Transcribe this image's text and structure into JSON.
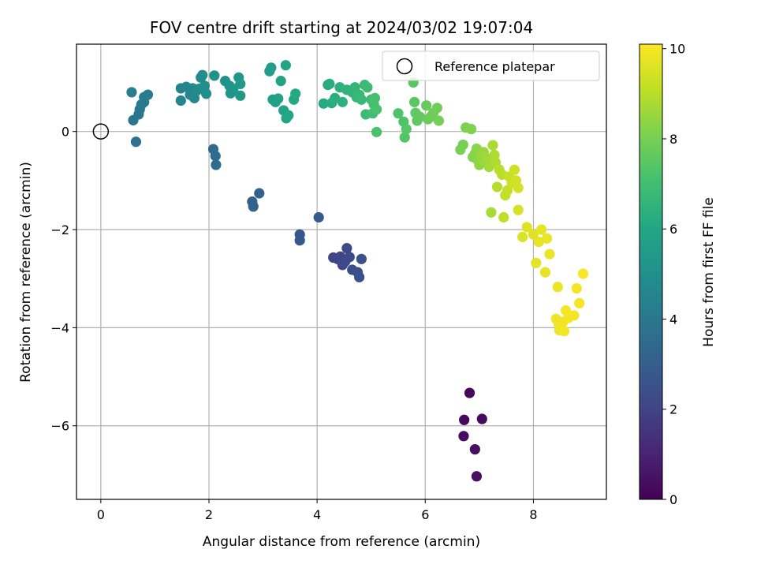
{
  "chart_data": {
    "type": "scatter",
    "title": "FOV centre drift starting at 2024/03/02 19:07:04",
    "xlabel": "Angular distance from reference (arcmin)",
    "ylabel": "Rotation from reference (arcmin)",
    "xlim": [
      -0.45,
      9.35
    ],
    "ylim": [
      -7.5,
      1.78
    ],
    "xticks": [
      0,
      2,
      4,
      6,
      8
    ],
    "yticks": [
      0,
      -2,
      -4,
      -6
    ],
    "xtick_labels": [
      "0",
      "2",
      "4",
      "6",
      "8"
    ],
    "ytick_labels": [
      "0",
      "−2",
      "−4",
      "−6"
    ],
    "grid": true,
    "legend": {
      "location": "top-right",
      "entries": [
        {
          "label": "Reference platepar",
          "marker": "open-circle"
        }
      ]
    },
    "reference_point": {
      "x": 0,
      "y": 0
    },
    "colorbar": {
      "label": "Hours from first FF file",
      "colormap": "viridis",
      "range": [
        0,
        10.1
      ],
      "ticks": [
        0,
        2,
        4,
        6,
        8,
        10
      ],
      "tick_labels": [
        "0",
        "2",
        "4",
        "6",
        "8",
        "10"
      ]
    },
    "series": [
      {
        "points": [
          {
            "x": 6.82,
            "y": -5.33,
            "t": 0.2
          },
          {
            "x": 6.72,
            "y": -5.88,
            "t": 0.25
          },
          {
            "x": 7.05,
            "y": -5.86,
            "t": 0.3
          },
          {
            "x": 6.71,
            "y": -6.21,
            "t": 0.35
          },
          {
            "x": 6.92,
            "y": -6.48,
            "t": 0.4
          },
          {
            "x": 6.95,
            "y": -7.03,
            "t": 0.45
          },
          {
            "x": 4.3,
            "y": -2.57,
            "t": 2.0
          },
          {
            "x": 4.38,
            "y": -2.6,
            "t": 2.05
          },
          {
            "x": 4.43,
            "y": -2.55,
            "t": 2.1
          },
          {
            "x": 4.47,
            "y": -2.72,
            "t": 2.15
          },
          {
            "x": 4.52,
            "y": -2.65,
            "t": 2.2
          },
          {
            "x": 4.55,
            "y": -2.38,
            "t": 2.25
          },
          {
            "x": 4.6,
            "y": -2.56,
            "t": 2.3
          },
          {
            "x": 4.65,
            "y": -2.82,
            "t": 2.35
          },
          {
            "x": 4.75,
            "y": -2.87,
            "t": 2.4
          },
          {
            "x": 4.78,
            "y": -2.97,
            "t": 2.45
          },
          {
            "x": 4.82,
            "y": -2.6,
            "t": 2.5
          },
          {
            "x": 3.68,
            "y": -2.1,
            "t": 2.7
          },
          {
            "x": 3.68,
            "y": -2.22,
            "t": 2.75
          },
          {
            "x": 4.03,
            "y": -1.75,
            "t": 2.85
          },
          {
            "x": 2.93,
            "y": -1.26,
            "t": 3.1
          },
          {
            "x": 2.8,
            "y": -1.43,
            "t": 3.15
          },
          {
            "x": 2.82,
            "y": -1.53,
            "t": 3.2
          },
          {
            "x": 2.08,
            "y": -0.36,
            "t": 3.5
          },
          {
            "x": 2.12,
            "y": -0.5,
            "t": 3.55
          },
          {
            "x": 2.13,
            "y": -0.68,
            "t": 3.6
          },
          {
            "x": 0.65,
            "y": -0.21,
            "t": 3.85
          },
          {
            "x": 0.6,
            "y": 0.23,
            "t": 3.9
          },
          {
            "x": 0.7,
            "y": 0.35,
            "t": 3.95
          },
          {
            "x": 0.72,
            "y": 0.45,
            "t": 4.0
          },
          {
            "x": 0.75,
            "y": 0.55,
            "t": 4.05
          },
          {
            "x": 0.8,
            "y": 0.6,
            "t": 4.1
          },
          {
            "x": 0.8,
            "y": 0.7,
            "t": 4.15
          },
          {
            "x": 0.87,
            "y": 0.75,
            "t": 4.2
          },
          {
            "x": 0.57,
            "y": 0.8,
            "t": 4.25
          },
          {
            "x": 1.48,
            "y": 0.63,
            "t": 4.45
          },
          {
            "x": 1.48,
            "y": 0.88,
            "t": 4.5
          },
          {
            "x": 1.58,
            "y": 0.91,
            "t": 4.55
          },
          {
            "x": 1.65,
            "y": 0.75,
            "t": 4.6
          },
          {
            "x": 1.7,
            "y": 0.88,
            "t": 4.65
          },
          {
            "x": 1.73,
            "y": 0.68,
            "t": 4.7
          },
          {
            "x": 1.77,
            "y": 0.83,
            "t": 4.75
          },
          {
            "x": 1.82,
            "y": 0.87,
            "t": 4.8
          },
          {
            "x": 1.85,
            "y": 1.1,
            "t": 4.85
          },
          {
            "x": 1.88,
            "y": 1.15,
            "t": 4.9
          },
          {
            "x": 1.92,
            "y": 0.93,
            "t": 4.95
          },
          {
            "x": 1.95,
            "y": 0.77,
            "t": 5.0
          },
          {
            "x": 2.1,
            "y": 1.14,
            "t": 5.05
          },
          {
            "x": 2.3,
            "y": 1.03,
            "t": 5.1
          },
          {
            "x": 2.38,
            "y": 0.93,
            "t": 5.15
          },
          {
            "x": 2.4,
            "y": 0.78,
            "t": 5.2
          },
          {
            "x": 2.45,
            "y": 0.87,
            "t": 5.25
          },
          {
            "x": 2.55,
            "y": 1.1,
            "t": 5.3
          },
          {
            "x": 2.58,
            "y": 0.97,
            "t": 5.35
          },
          {
            "x": 2.58,
            "y": 0.73,
            "t": 5.4
          },
          {
            "x": 3.12,
            "y": 1.23,
            "t": 5.55
          },
          {
            "x": 3.15,
            "y": 1.3,
            "t": 5.6
          },
          {
            "x": 3.18,
            "y": 0.65,
            "t": 5.65
          },
          {
            "x": 3.23,
            "y": 0.6,
            "t": 5.7
          },
          {
            "x": 3.28,
            "y": 0.67,
            "t": 5.75
          },
          {
            "x": 3.33,
            "y": 1.03,
            "t": 5.8
          },
          {
            "x": 3.38,
            "y": 0.43,
            "t": 5.85
          },
          {
            "x": 3.42,
            "y": 1.35,
            "t": 5.9
          },
          {
            "x": 3.43,
            "y": 0.27,
            "t": 5.95
          },
          {
            "x": 3.47,
            "y": 0.33,
            "t": 6.0
          },
          {
            "x": 3.57,
            "y": 0.65,
            "t": 6.05
          },
          {
            "x": 3.6,
            "y": 0.77,
            "t": 6.1
          },
          {
            "x": 4.12,
            "y": 0.57,
            "t": 6.15
          },
          {
            "x": 4.2,
            "y": 0.95,
            "t": 6.2
          },
          {
            "x": 4.23,
            "y": 0.97,
            "t": 6.25
          },
          {
            "x": 4.27,
            "y": 0.58,
            "t": 6.3
          },
          {
            "x": 4.33,
            "y": 0.68,
            "t": 6.35
          },
          {
            "x": 4.42,
            "y": 0.9,
            "t": 6.4
          },
          {
            "x": 4.47,
            "y": 0.6,
            "t": 6.45
          },
          {
            "x": 4.55,
            "y": 0.85,
            "t": 6.5
          },
          {
            "x": 4.65,
            "y": 0.8,
            "t": 6.55
          },
          {
            "x": 4.7,
            "y": 0.9,
            "t": 6.6
          },
          {
            "x": 4.73,
            "y": 0.7,
            "t": 6.65
          },
          {
            "x": 4.78,
            "y": 0.75,
            "t": 6.7
          },
          {
            "x": 4.82,
            "y": 0.65,
            "t": 6.75
          },
          {
            "x": 4.88,
            "y": 0.95,
            "t": 6.8
          },
          {
            "x": 4.9,
            "y": 0.35,
            "t": 6.85
          },
          {
            "x": 4.93,
            "y": 0.9,
            "t": 6.9
          },
          {
            "x": 5.0,
            "y": 0.65,
            "t": 6.95
          },
          {
            "x": 5.03,
            "y": 0.37,
            "t": 7.0
          },
          {
            "x": 5.05,
            "y": 0.55,
            "t": 7.05
          },
          {
            "x": 5.07,
            "y": 0.68,
            "t": 7.1
          },
          {
            "x": 5.1,
            "y": 0.45,
            "t": 7.15
          },
          {
            "x": 5.1,
            "y": -0.01,
            "t": 7.2
          },
          {
            "x": 5.5,
            "y": 0.37,
            "t": 7.25
          },
          {
            "x": 5.6,
            "y": 0.2,
            "t": 7.3
          },
          {
            "x": 5.62,
            "y": -0.12,
            "t": 7.35
          },
          {
            "x": 5.65,
            "y": 0.05,
            "t": 7.4
          },
          {
            "x": 5.78,
            "y": 1.0,
            "t": 7.45
          },
          {
            "x": 5.8,
            "y": 0.6,
            "t": 7.5
          },
          {
            "x": 5.82,
            "y": 0.38,
            "t": 7.55
          },
          {
            "x": 5.85,
            "y": 0.22,
            "t": 7.6
          },
          {
            "x": 5.9,
            "y": 0.3,
            "t": 7.65
          },
          {
            "x": 6.02,
            "y": 0.53,
            "t": 7.7
          },
          {
            "x": 6.05,
            "y": 0.25,
            "t": 7.75
          },
          {
            "x": 6.1,
            "y": 0.3,
            "t": 7.8
          },
          {
            "x": 6.15,
            "y": 0.38,
            "t": 7.85
          },
          {
            "x": 6.22,
            "y": 0.48,
            "t": 7.9
          },
          {
            "x": 6.25,
            "y": 0.22,
            "t": 7.95
          },
          {
            "x": 6.65,
            "y": -0.37,
            "t": 8.0
          },
          {
            "x": 6.7,
            "y": -0.27,
            "t": 8.05
          },
          {
            "x": 6.75,
            "y": 0.08,
            "t": 8.1
          },
          {
            "x": 6.85,
            "y": 0.05,
            "t": 8.15
          },
          {
            "x": 6.88,
            "y": -0.52,
            "t": 8.2
          },
          {
            "x": 6.92,
            "y": -0.45,
            "t": 8.25
          },
          {
            "x": 6.95,
            "y": -0.35,
            "t": 8.3
          },
          {
            "x": 6.98,
            "y": -0.6,
            "t": 8.35
          },
          {
            "x": 7.0,
            "y": -0.68,
            "t": 8.4
          },
          {
            "x": 7.02,
            "y": -0.5,
            "t": 8.45
          },
          {
            "x": 7.05,
            "y": -0.58,
            "t": 8.5
          },
          {
            "x": 7.08,
            "y": -0.42,
            "t": 8.55
          },
          {
            "x": 7.12,
            "y": -0.63,
            "t": 8.6
          },
          {
            "x": 7.15,
            "y": -0.55,
            "t": 8.65
          },
          {
            "x": 7.18,
            "y": -0.72,
            "t": 8.7
          },
          {
            "x": 7.22,
            "y": -1.65,
            "t": 8.75
          },
          {
            "x": 7.25,
            "y": -0.28,
            "t": 8.8
          },
          {
            "x": 7.28,
            "y": -0.48,
            "t": 8.85
          },
          {
            "x": 7.3,
            "y": -0.63,
            "t": 8.9
          },
          {
            "x": 7.33,
            "y": -1.13,
            "t": 8.95
          },
          {
            "x": 7.37,
            "y": -0.78,
            "t": 9.0
          },
          {
            "x": 7.42,
            "y": -0.88,
            "t": 9.05
          },
          {
            "x": 7.45,
            "y": -1.75,
            "t": 9.1
          },
          {
            "x": 7.48,
            "y": -1.3,
            "t": 9.15
          },
          {
            "x": 7.52,
            "y": -1.2,
            "t": 9.2
          },
          {
            "x": 7.55,
            "y": -0.92,
            "t": 9.25
          },
          {
            "x": 7.6,
            "y": -1.05,
            "t": 9.3
          },
          {
            "x": 7.65,
            "y": -0.78,
            "t": 9.35
          },
          {
            "x": 7.68,
            "y": -1.0,
            "t": 9.4
          },
          {
            "x": 7.72,
            "y": -1.15,
            "t": 9.45
          },
          {
            "x": 7.72,
            "y": -1.6,
            "t": 9.5
          },
          {
            "x": 7.8,
            "y": -2.15,
            "t": 9.55
          },
          {
            "x": 7.88,
            "y": -1.95,
            "t": 9.6
          },
          {
            "x": 8.0,
            "y": -2.1,
            "t": 9.65
          },
          {
            "x": 8.05,
            "y": -2.68,
            "t": 9.7
          },
          {
            "x": 8.1,
            "y": -2.25,
            "t": 9.72
          },
          {
            "x": 8.15,
            "y": -2.0,
            "t": 9.74
          },
          {
            "x": 8.22,
            "y": -2.87,
            "t": 9.76
          },
          {
            "x": 8.25,
            "y": -2.18,
            "t": 9.78
          },
          {
            "x": 8.3,
            "y": -2.5,
            "t": 9.8
          },
          {
            "x": 8.45,
            "y": -3.17,
            "t": 9.82
          },
          {
            "x": 8.42,
            "y": -3.82,
            "t": 9.84
          },
          {
            "x": 8.47,
            "y": -3.93,
            "t": 9.86
          },
          {
            "x": 8.48,
            "y": -4.05,
            "t": 9.88
          },
          {
            "x": 8.55,
            "y": -3.88,
            "t": 9.9
          },
          {
            "x": 8.57,
            "y": -4.07,
            "t": 9.92
          },
          {
            "x": 8.6,
            "y": -3.65,
            "t": 9.94
          },
          {
            "x": 8.65,
            "y": -3.8,
            "t": 9.96
          },
          {
            "x": 8.75,
            "y": -3.75,
            "t": 9.97
          },
          {
            "x": 8.8,
            "y": -3.2,
            "t": 9.98
          },
          {
            "x": 8.85,
            "y": -3.5,
            "t": 9.99
          },
          {
            "x": 8.92,
            "y": -2.9,
            "t": 10.0
          }
        ]
      }
    ]
  }
}
